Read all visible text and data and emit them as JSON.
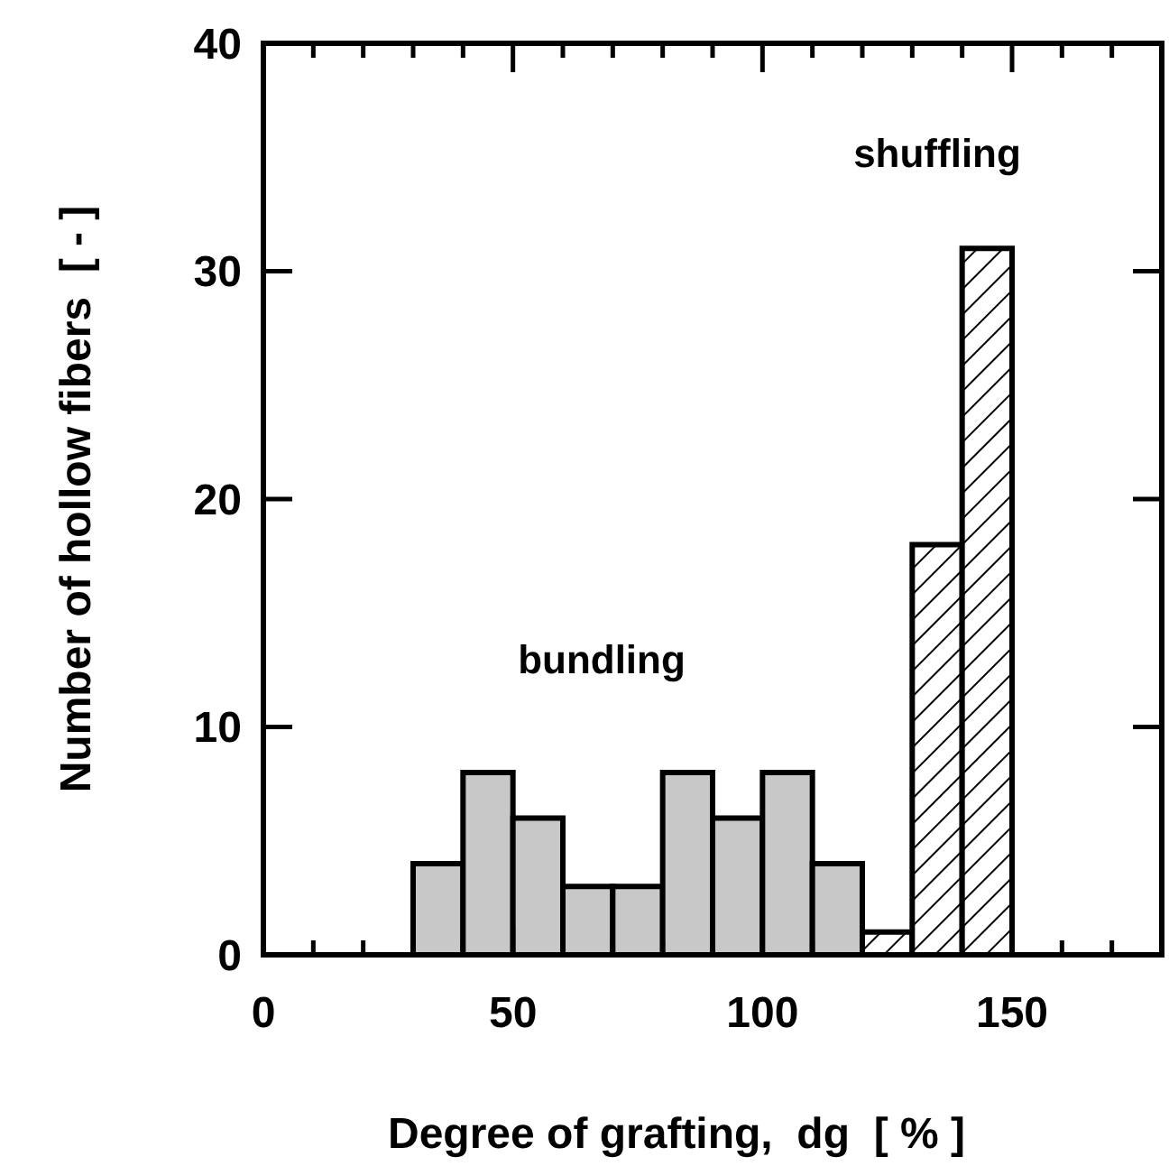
{
  "chart_data": {
    "type": "histogram",
    "xlabel": "Degree of grafting,  dg  [ % ]",
    "ylabel": "Number of hollow fibers  [ - ]",
    "bins": [
      30,
      40,
      50,
      60,
      70,
      80,
      90,
      100,
      110,
      120,
      130,
      140,
      150
    ],
    "series": [
      {
        "name": "bundling",
        "color": "#c8c8c8",
        "values": [
          4,
          8,
          6,
          3,
          3,
          8,
          6,
          8,
          4,
          null,
          null,
          null
        ]
      },
      {
        "name": "shuffling",
        "color": "#000000",
        "values": [
          null,
          null,
          null,
          null,
          null,
          null,
          null,
          null,
          null,
          1,
          18,
          31
        ]
      }
    ],
    "xlim": [
      0,
      180
    ],
    "xticks": [
      0,
      {
        "value": 10,
        "label": null
      },
      {
        "value": 20,
        "label": null
      },
      {
        "value": 30,
        "label": null
      },
      {
        "value": 40,
        "label": null
      },
      50,
      {
        "value": 60,
        "label": null
      },
      {
        "value": 70,
        "label": null
      },
      {
        "value": 80,
        "label": null
      },
      {
        "value": 90,
        "label": null
      },
      100,
      {
        "value": 110,
        "label": null
      },
      {
        "value": 120,
        "label": null
      },
      {
        "value": 130,
        "label": null
      },
      {
        "value": 140,
        "label": null
      },
      150,
      {
        "value": 160,
        "label": null
      },
      {
        "value": 170,
        "label": null
      }
    ],
    "ylim": [
      0,
      40
    ],
    "yticks": [
      0,
      10,
      20,
      30,
      40
    ]
  }
}
